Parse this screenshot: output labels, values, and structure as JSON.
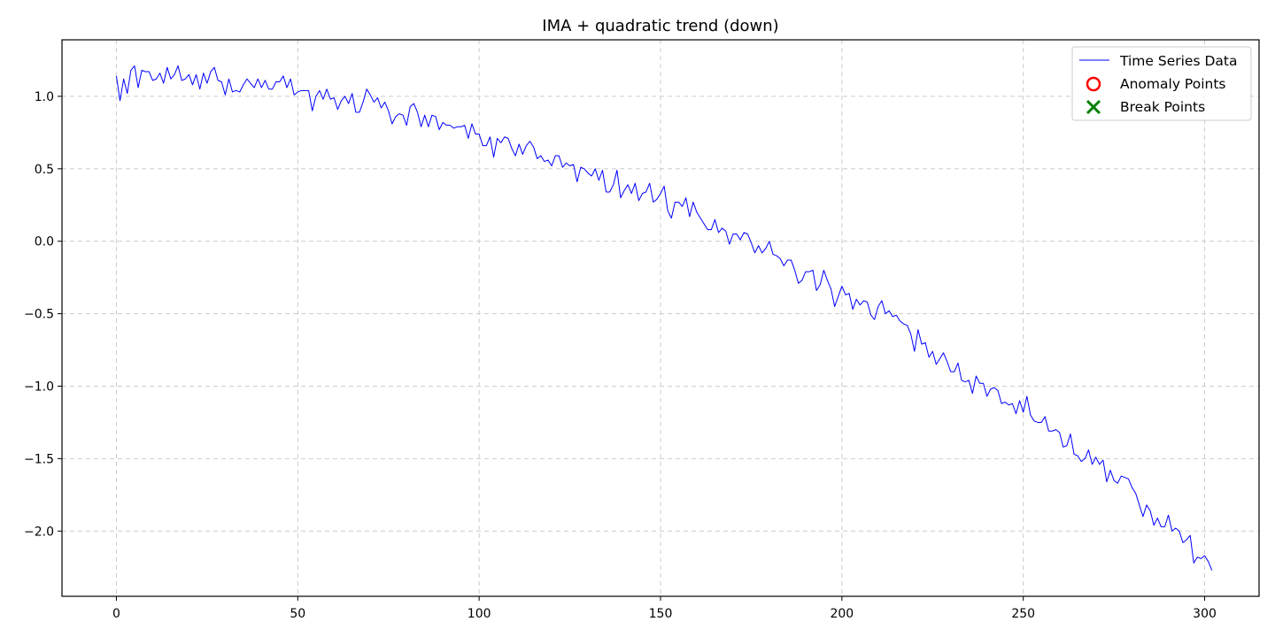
{
  "chart_data": {
    "type": "line",
    "title": "IMA + quadratic trend (down)",
    "xlabel": "",
    "ylabel": "",
    "xlim": [
      -15,
      315
    ],
    "ylim": [
      -2.45,
      1.39
    ],
    "xticks": [
      0,
      50,
      100,
      150,
      200,
      250,
      300
    ],
    "xtick_labels": [
      "0",
      "50",
      "100",
      "150",
      "200",
      "250",
      "300"
    ],
    "yticks": [
      1.0,
      0.5,
      0.0,
      -0.5,
      -1.0,
      -1.5,
      -2.0
    ],
    "ytick_labels": [
      "1.0",
      "0.5",
      "0.0",
      "−0.5",
      "−1.0",
      "−1.5",
      "−2.0"
    ],
    "grid": true,
    "legend_position": "top-right",
    "legend": [
      {
        "label": "Time Series Data",
        "marker": "line",
        "color": "#0000ff"
      },
      {
        "label": "Anomaly Points",
        "marker": "circle",
        "color": "#ff0000"
      },
      {
        "label": "Break Points",
        "marker": "x",
        "color": "#008000"
      }
    ],
    "series": [
      {
        "name": "Time Series Data",
        "color": "#0000ff",
        "x_start": 0,
        "x_step": 1,
        "values": [
          1.14,
          0.97,
          1.12,
          1.02,
          1.18,
          1.21,
          1.06,
          1.18,
          1.17,
          1.17,
          1.11,
          1.12,
          1.16,
          1.09,
          1.2,
          1.12,
          1.15,
          1.21,
          1.11,
          1.12,
          1.15,
          1.08,
          1.15,
          1.05,
          1.16,
          1.09,
          1.17,
          1.2,
          1.11,
          1.1,
          1.01,
          1.12,
          1.03,
          1.04,
          1.03,
          1.08,
          1.12,
          1.09,
          1.06,
          1.12,
          1.06,
          1.11,
          1.05,
          1.05,
          1.1,
          1.1,
          1.14,
          1.06,
          1.12,
          1.01,
          1.03,
          1.04,
          1.04,
          1.04,
          0.9,
          1.0,
          1.04,
          0.98,
          1.05,
          0.98,
          0.99,
          0.91,
          0.97,
          1.0,
          0.95,
          1.02,
          0.89,
          0.89,
          0.96,
          1.05,
          1.01,
          0.96,
          0.99,
          0.92,
          0.96,
          0.9,
          0.81,
          0.86,
          0.88,
          0.87,
          0.8,
          0.93,
          0.95,
          0.89,
          0.79,
          0.87,
          0.79,
          0.87,
          0.86,
          0.77,
          0.82,
          0.8,
          0.8,
          0.78,
          0.79,
          0.79,
          0.8,
          0.71,
          0.81,
          0.74,
          0.74,
          0.66,
          0.66,
          0.72,
          0.58,
          0.71,
          0.68,
          0.72,
          0.71,
          0.64,
          0.59,
          0.67,
          0.6,
          0.66,
          0.69,
          0.65,
          0.57,
          0.59,
          0.55,
          0.56,
          0.52,
          0.59,
          0.59,
          0.51,
          0.54,
          0.52,
          0.53,
          0.41,
          0.51,
          0.5,
          0.47,
          0.45,
          0.5,
          0.42,
          0.49,
          0.34,
          0.34,
          0.39,
          0.49,
          0.3,
          0.35,
          0.39,
          0.33,
          0.4,
          0.28,
          0.33,
          0.34,
          0.4,
          0.27,
          0.29,
          0.33,
          0.38,
          0.21,
          0.16,
          0.27,
          0.27,
          0.24,
          0.3,
          0.17,
          0.27,
          0.2,
          0.16,
          0.12,
          0.08,
          0.08,
          0.15,
          0.06,
          0.09,
          0.07,
          -0.02,
          0.05,
          0.05,
          0.01,
          0.06,
          0.05,
          -0.01,
          -0.08,
          -0.03,
          -0.08,
          -0.05,
          0.0,
          -0.09,
          -0.1,
          -0.12,
          -0.17,
          -0.13,
          -0.13,
          -0.2,
          -0.29,
          -0.27,
          -0.21,
          -0.21,
          -0.2,
          -0.34,
          -0.3,
          -0.2,
          -0.27,
          -0.33,
          -0.45,
          -0.38,
          -0.31,
          -0.37,
          -0.36,
          -0.47,
          -0.4,
          -0.44,
          -0.41,
          -0.42,
          -0.51,
          -0.54,
          -0.45,
          -0.41,
          -0.5,
          -0.48,
          -0.52,
          -0.51,
          -0.55,
          -0.57,
          -0.58,
          -0.64,
          -0.76,
          -0.61,
          -0.71,
          -0.7,
          -0.8,
          -0.76,
          -0.85,
          -0.81,
          -0.77,
          -0.83,
          -0.9,
          -0.9,
          -0.84,
          -0.96,
          -0.97,
          -0.96,
          -1.05,
          -0.93,
          -0.98,
          -0.98,
          -1.07,
          -1.02,
          -1.01,
          -1.03,
          -1.12,
          -1.11,
          -1.13,
          -1.12,
          -1.19,
          -1.1,
          -1.18,
          -1.07,
          -1.2,
          -1.24,
          -1.25,
          -1.25,
          -1.21,
          -1.31,
          -1.31,
          -1.3,
          -1.32,
          -1.42,
          -1.41,
          -1.33,
          -1.47,
          -1.48,
          -1.52,
          -1.5,
          -1.44,
          -1.54,
          -1.49,
          -1.54,
          -1.51,
          -1.66,
          -1.58,
          -1.65,
          -1.67,
          -1.62,
          -1.63,
          -1.64,
          -1.7,
          -1.74,
          -1.82,
          -1.9,
          -1.82,
          -1.86,
          -1.96,
          -1.91,
          -1.97,
          -1.97,
          -1.89,
          -2.0,
          -1.98,
          -2.0,
          -2.08,
          -2.06,
          -2.03,
          -2.22,
          -2.18,
          -2.19,
          -2.17,
          -2.21,
          -2.27
        ]
      }
    ]
  }
}
